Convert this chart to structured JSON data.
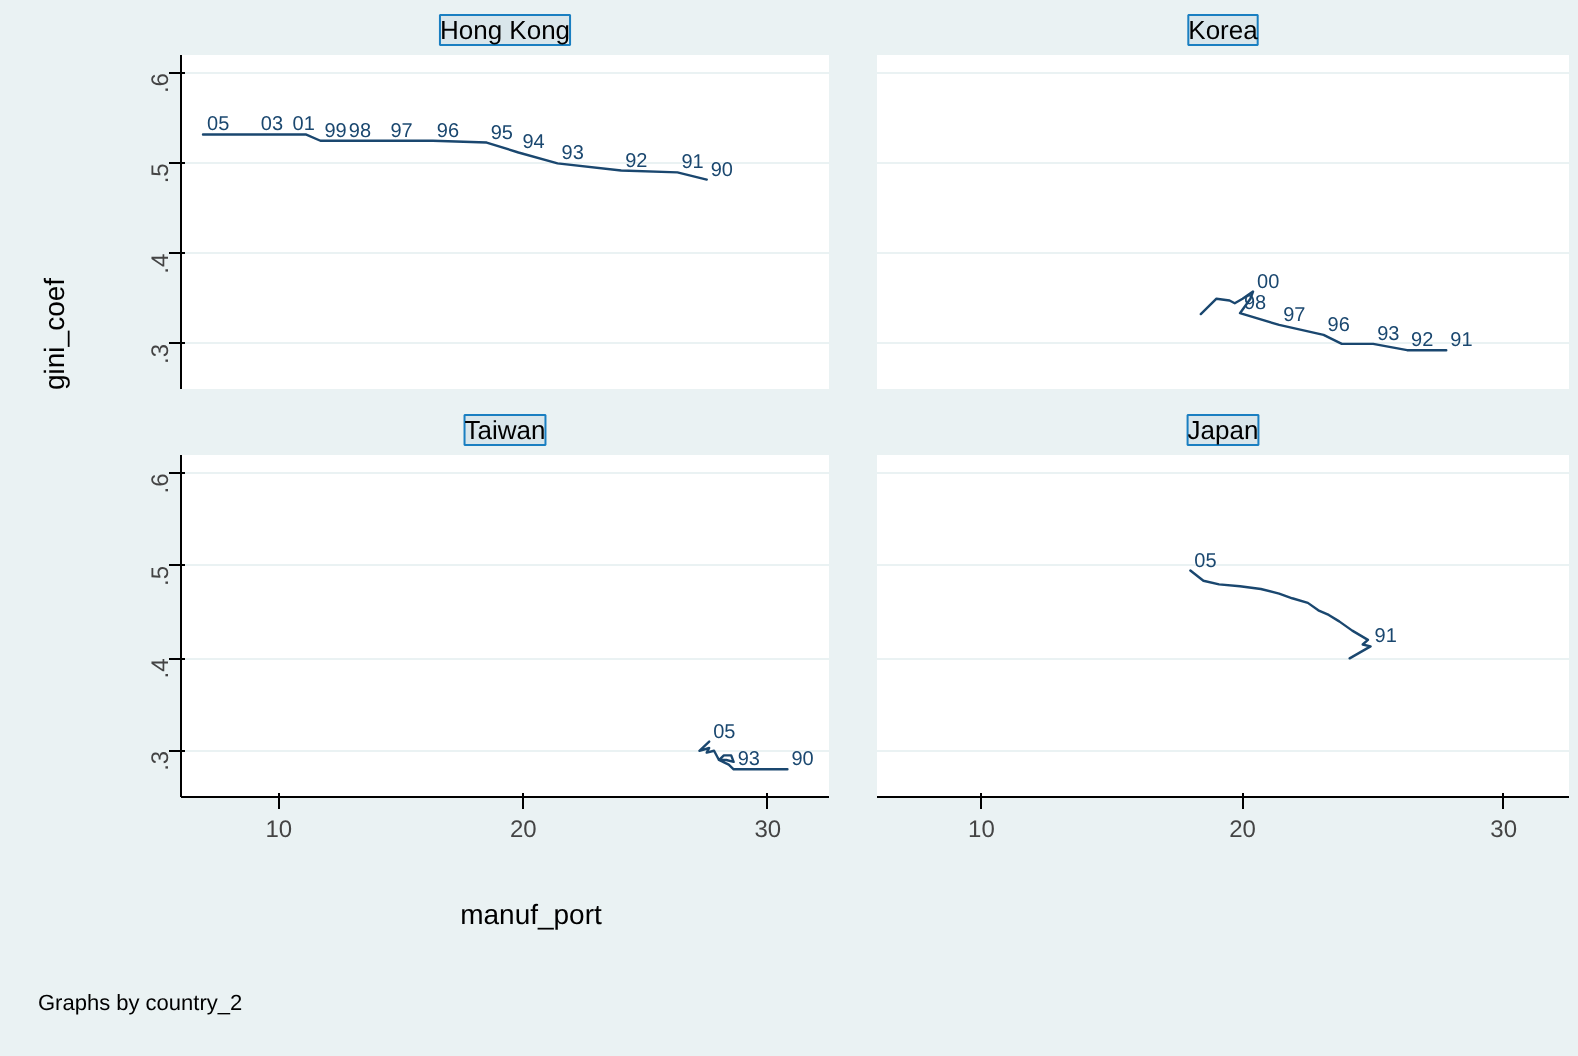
{
  "chart_data": [
    {
      "type": "line",
      "title": "Hong Kong",
      "ylabel": "gini_coef",
      "xlim": [
        6,
        32.5
      ],
      "ylim": [
        0.25,
        0.62
      ],
      "xticks": [
        10,
        20,
        30
      ],
      "yticks": [
        {
          "value": 0.3,
          "label": ".3"
        },
        {
          "value": 0.4,
          "label": ".4"
        },
        {
          "value": 0.5,
          "label": ".5"
        },
        {
          "value": 0.6,
          "label": ".6"
        }
      ],
      "grid": "y",
      "marker": "none",
      "tick_labels": "y",
      "series": [
        {
          "color": "#1a476f",
          "x": [
            27.5,
            26.3,
            24.0,
            21.4,
            19.8,
            18.5,
            16.3,
            14.4,
            12.7,
            11.7,
            11.1,
            10.4,
            9.6,
            9.1,
            7.8,
            6.9
          ],
          "values": [
            0.482,
            0.49,
            0.492,
            0.5,
            0.512,
            0.523,
            0.525,
            0.525,
            0.525,
            0.525,
            0.532,
            0.532,
            0.532,
            0.532,
            0.532,
            0.532
          ]
        }
      ],
      "annotations": [
        {
          "text": "90",
          "x": 27.5,
          "y": 0.482
        },
        {
          "text": "91",
          "x": 26.3,
          "y": 0.49
        },
        {
          "text": "92",
          "x": 24.0,
          "y": 0.492
        },
        {
          "text": "93",
          "x": 21.4,
          "y": 0.5
        },
        {
          "text": "94",
          "x": 19.8,
          "y": 0.512
        },
        {
          "text": "95",
          "x": 18.5,
          "y": 0.523
        },
        {
          "text": "96",
          "x": 16.3,
          "y": 0.525
        },
        {
          "text": "97",
          "x": 14.4,
          "y": 0.525
        },
        {
          "text": "98",
          "x": 12.7,
          "y": 0.525
        },
        {
          "text": "99",
          "x": 11.7,
          "y": 0.525
        },
        {
          "text": "01",
          "x": 10.4,
          "y": 0.532
        },
        {
          "text": "03",
          "x": 9.1,
          "y": 0.532
        },
        {
          "text": "05",
          "x": 6.9,
          "y": 0.532
        }
      ]
    },
    {
      "type": "line",
      "title": "Korea",
      "xlim": [
        6,
        32.5
      ],
      "ylim": [
        0.25,
        0.62
      ],
      "xticks": [
        10,
        20,
        30
      ],
      "yticks": [
        0.3,
        0.4,
        0.5,
        0.6
      ],
      "grid": "y",
      "marker": "none",
      "tick_labels": false,
      "series": [
        {
          "color": "#1a476f",
          "x": [
            27.2,
            27.8,
            26.3,
            25.0,
            24.3,
            23.8,
            23.1,
            21.4,
            19.9,
            20.3,
            20.4,
            20.0,
            19.7,
            19.5,
            19.0,
            18.4
          ],
          "values": [
            0.293,
            0.293,
            0.293,
            0.3,
            0.3,
            0.3,
            0.31,
            0.321,
            0.334,
            0.35,
            0.358,
            0.35,
            0.345,
            0.348,
            0.35,
            0.333
          ]
        }
      ],
      "annotations": [
        {
          "text": "91",
          "x": 27.8,
          "y": 0.293
        },
        {
          "text": "92",
          "x": 26.3,
          "y": 0.293
        },
        {
          "text": "93",
          "x": 25.0,
          "y": 0.3
        },
        {
          "text": "96",
          "x": 23.1,
          "y": 0.31
        },
        {
          "text": "97",
          "x": 21.4,
          "y": 0.321
        },
        {
          "text": "98",
          "x": 19.9,
          "y": 0.334
        },
        {
          "text": "00",
          "x": 20.4,
          "y": 0.358
        }
      ]
    },
    {
      "type": "line",
      "title": "Taiwan",
      "xlabel": "manuf_port",
      "xlim": [
        6,
        32.5
      ],
      "ylim": [
        0.25,
        0.62
      ],
      "xticks": [
        10,
        20,
        30
      ],
      "yticks": [
        {
          "value": 0.3,
          "label": ".3"
        },
        {
          "value": 0.4,
          "label": ".4"
        },
        {
          "value": 0.5,
          "label": ".5"
        },
        {
          "value": 0.6,
          "label": ".6"
        }
      ],
      "grid": "y",
      "marker": "none",
      "series": [
        {
          "color": "#1a476f",
          "x": [
            30.8,
            30.4,
            30.0,
            28.6,
            28.4,
            28.0,
            28.3,
            28.6,
            28.5,
            28.2,
            28.0,
            27.8,
            27.5,
            27.6,
            27.2,
            27.6
          ],
          "values": [
            0.28,
            0.28,
            0.28,
            0.28,
            0.285,
            0.29,
            0.29,
            0.288,
            0.295,
            0.295,
            0.29,
            0.3,
            0.298,
            0.303,
            0.3,
            0.31
          ]
        }
      ],
      "annotations": [
        "Graphs by country_2",
        {
          "text": "90",
          "x": 30.8,
          "y": 0.28
        },
        {
          "text": "93",
          "x": 28.6,
          "y": 0.28
        },
        {
          "text": "05",
          "x": 27.6,
          "y": 0.31
        }
      ]
    },
    {
      "type": "line",
      "title": "Japan",
      "xlim": [
        6,
        32.5
      ],
      "ylim": [
        0.25,
        0.62
      ],
      "xticks": [
        10,
        20,
        30
      ],
      "yticks": [
        0.3,
        0.4,
        0.5,
        0.6
      ],
      "grid": "y",
      "marker": "none",
      "tick_labels": "x",
      "series": [
        {
          "color": "#1a476f",
          "x": [
            24.1,
            24.9,
            24.6,
            24.8,
            24.2,
            23.7,
            23.3,
            22.9,
            22.5,
            21.9,
            21.4,
            20.7,
            19.9,
            19.1,
            18.5,
            18.0
          ],
          "values": [
            0.4,
            0.413,
            0.415,
            0.42,
            0.43,
            0.44,
            0.447,
            0.452,
            0.46,
            0.465,
            0.47,
            0.475,
            0.478,
            0.48,
            0.484,
            0.495
          ]
        }
      ],
      "annotations": [
        {
          "text": "91",
          "x": 24.9,
          "y": 0.413
        },
        {
          "text": "05",
          "x": 18.0,
          "y": 0.495
        }
      ]
    }
  ]
}
